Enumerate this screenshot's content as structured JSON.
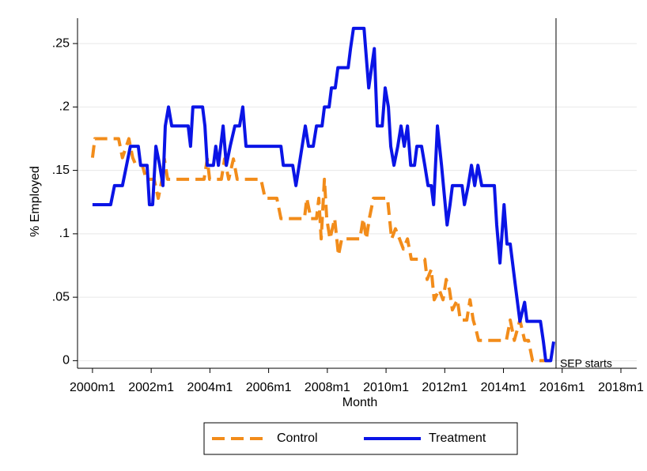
{
  "chart_data": {
    "type": "line",
    "x_label": "Month",
    "y_label": "% Employed",
    "xlim": [
      1999.49,
      2018.0
    ],
    "ylim": [
      -0.006,
      0.27
    ],
    "xticks": [
      {
        "value": 2000,
        "label": "2000m1"
      },
      {
        "value": 2002,
        "label": "2002m1"
      },
      {
        "value": 2004,
        "label": "2004m1"
      },
      {
        "value": 2006,
        "label": "2006m1"
      },
      {
        "value": 2008,
        "label": "2008m1"
      },
      {
        "value": 2010,
        "label": "2010m1"
      },
      {
        "value": 2012,
        "label": "2012m1"
      },
      {
        "value": 2014,
        "label": "2014m1"
      },
      {
        "value": 2016,
        "label": "2016m1"
      },
      {
        "value": 2018,
        "label": "2018m1"
      }
    ],
    "yticks": [
      0,
      {
        "value": 0.05,
        "label": ".05"
      },
      {
        "value": 0.1,
        "label": ".1"
      },
      {
        "value": 0.15,
        "label": ".15"
      },
      {
        "value": 0.2,
        "label": ".2"
      },
      {
        "value": 0.25,
        "label": ".25"
      }
    ],
    "grid": true,
    "legend": "bottom",
    "vline": {
      "x": 2015.79,
      "label": "SEP starts"
    },
    "series": [
      {
        "name": "Control",
        "color": "#f28c1a",
        "dash": true,
        "x": [
          2000.0,
          2000.08,
          2000.89,
          2001.02,
          2001.24,
          2001.37,
          2001.48,
          2001.7,
          2001.83,
          2002.1,
          2002.24,
          2002.37,
          2002.45,
          2002.56,
          2003.8,
          2003.91,
          2003.99,
          2004.39,
          2004.5,
          2004.64,
          2004.8,
          2004.93,
          2005.74,
          2005.88,
          2006.28,
          2006.42,
          2007.22,
          2007.3,
          2007.44,
          2007.63,
          2007.71,
          2007.79,
          2007.9,
          2007.98,
          2008.09,
          2008.25,
          2008.38,
          2008.49,
          2009.11,
          2009.22,
          2009.33,
          2009.43,
          2009.57,
          2010.05,
          2010.19,
          2010.32,
          2010.46,
          2010.59,
          2010.73,
          2010.86,
          2011.32,
          2011.4,
          2011.54,
          2011.64,
          2011.81,
          2011.94,
          2012.05,
          2012.16,
          2012.26,
          2012.43,
          2012.53,
          2012.75,
          2012.86,
          2012.97,
          2013.07,
          2013.15,
          2014.1,
          2014.23,
          2014.37,
          2014.56,
          2014.72,
          2014.85,
          2014.99,
          2015.58
        ],
        "values": [
          0.16,
          0.175,
          0.175,
          0.16,
          0.175,
          0.16,
          0.154,
          0.154,
          0.143,
          0.143,
          0.128,
          0.143,
          0.159,
          0.143,
          0.143,
          0.159,
          0.143,
          0.143,
          0.159,
          0.143,
          0.159,
          0.143,
          0.143,
          0.128,
          0.128,
          0.112,
          0.112,
          0.128,
          0.112,
          0.112,
          0.128,
          0.096,
          0.143,
          0.112,
          0.096,
          0.112,
          0.083,
          0.096,
          0.096,
          0.112,
          0.096,
          0.112,
          0.128,
          0.128,
          0.096,
          0.104,
          0.096,
          0.088,
          0.096,
          0.08,
          0.08,
          0.064,
          0.072,
          0.048,
          0.056,
          0.048,
          0.064,
          0.056,
          0.04,
          0.048,
          0.032,
          0.032,
          0.048,
          0.032,
          0.024,
          0.016,
          0.016,
          0.032,
          0.016,
          0.032,
          0.016,
          0.016,
          0,
          0
        ]
      },
      {
        "name": "Treatment",
        "color": "#0a14e6",
        "dash": false,
        "x": [
          2000.0,
          2000.62,
          2000.75,
          2001.02,
          2001.16,
          2001.29,
          2001.56,
          2001.64,
          2001.86,
          2001.94,
          2002.05,
          2002.16,
          2002.29,
          2002.4,
          2002.48,
          2002.59,
          2002.7,
          2003.26,
          2003.34,
          2003.42,
          2003.75,
          2003.83,
          2003.91,
          2004.12,
          2004.2,
          2004.29,
          2004.45,
          2004.56,
          2004.69,
          2004.85,
          2005.01,
          2005.12,
          2005.23,
          2006.42,
          2006.5,
          2006.82,
          2006.93,
          2007.04,
          2007.25,
          2007.36,
          2007.52,
          2007.63,
          2007.82,
          2007.9,
          2008.06,
          2008.14,
          2008.27,
          2008.36,
          2008.71,
          2008.79,
          2008.89,
          2009.25,
          2009.41,
          2009.6,
          2009.7,
          2009.87,
          2009.97,
          2010.08,
          2010.16,
          2010.27,
          2010.4,
          2010.51,
          2010.62,
          2010.73,
          2010.84,
          2010.97,
          2011.05,
          2011.21,
          2011.32,
          2011.43,
          2011.54,
          2011.62,
          2011.75,
          2011.89,
          2012.08,
          2012.18,
          2012.26,
          2012.59,
          2012.67,
          2012.8,
          2012.91,
          2013.02,
          2013.13,
          2013.26,
          2013.69,
          2013.77,
          2013.88,
          2014.02,
          2014.12,
          2014.23,
          2014.39,
          2014.56,
          2014.72,
          2014.8,
          2015.26,
          2015.36,
          2015.44,
          2015.61,
          2015.71
        ],
        "values": [
          0.123,
          0.123,
          0.138,
          0.138,
          0.154,
          0.169,
          0.169,
          0.154,
          0.154,
          0.123,
          0.123,
          0.169,
          0.154,
          0.138,
          0.185,
          0.2,
          0.185,
          0.185,
          0.169,
          0.2,
          0.2,
          0.185,
          0.154,
          0.154,
          0.169,
          0.154,
          0.185,
          0.154,
          0.169,
          0.185,
          0.185,
          0.2,
          0.169,
          0.169,
          0.154,
          0.154,
          0.138,
          0.154,
          0.185,
          0.169,
          0.169,
          0.185,
          0.185,
          0.2,
          0.2,
          0.215,
          0.215,
          0.231,
          0.231,
          0.246,
          0.262,
          0.262,
          0.215,
          0.246,
          0.185,
          0.185,
          0.215,
          0.2,
          0.169,
          0.154,
          0.169,
          0.185,
          0.169,
          0.185,
          0.154,
          0.154,
          0.169,
          0.169,
          0.154,
          0.138,
          0.138,
          0.123,
          0.185,
          0.154,
          0.107,
          0.123,
          0.138,
          0.138,
          0.123,
          0.138,
          0.154,
          0.138,
          0.154,
          0.138,
          0.138,
          0.107,
          0.077,
          0.123,
          0.092,
          0.092,
          0.062,
          0.031,
          0.046,
          0.031,
          0.031,
          0.015,
          0,
          0,
          0.015
        ]
      }
    ]
  }
}
